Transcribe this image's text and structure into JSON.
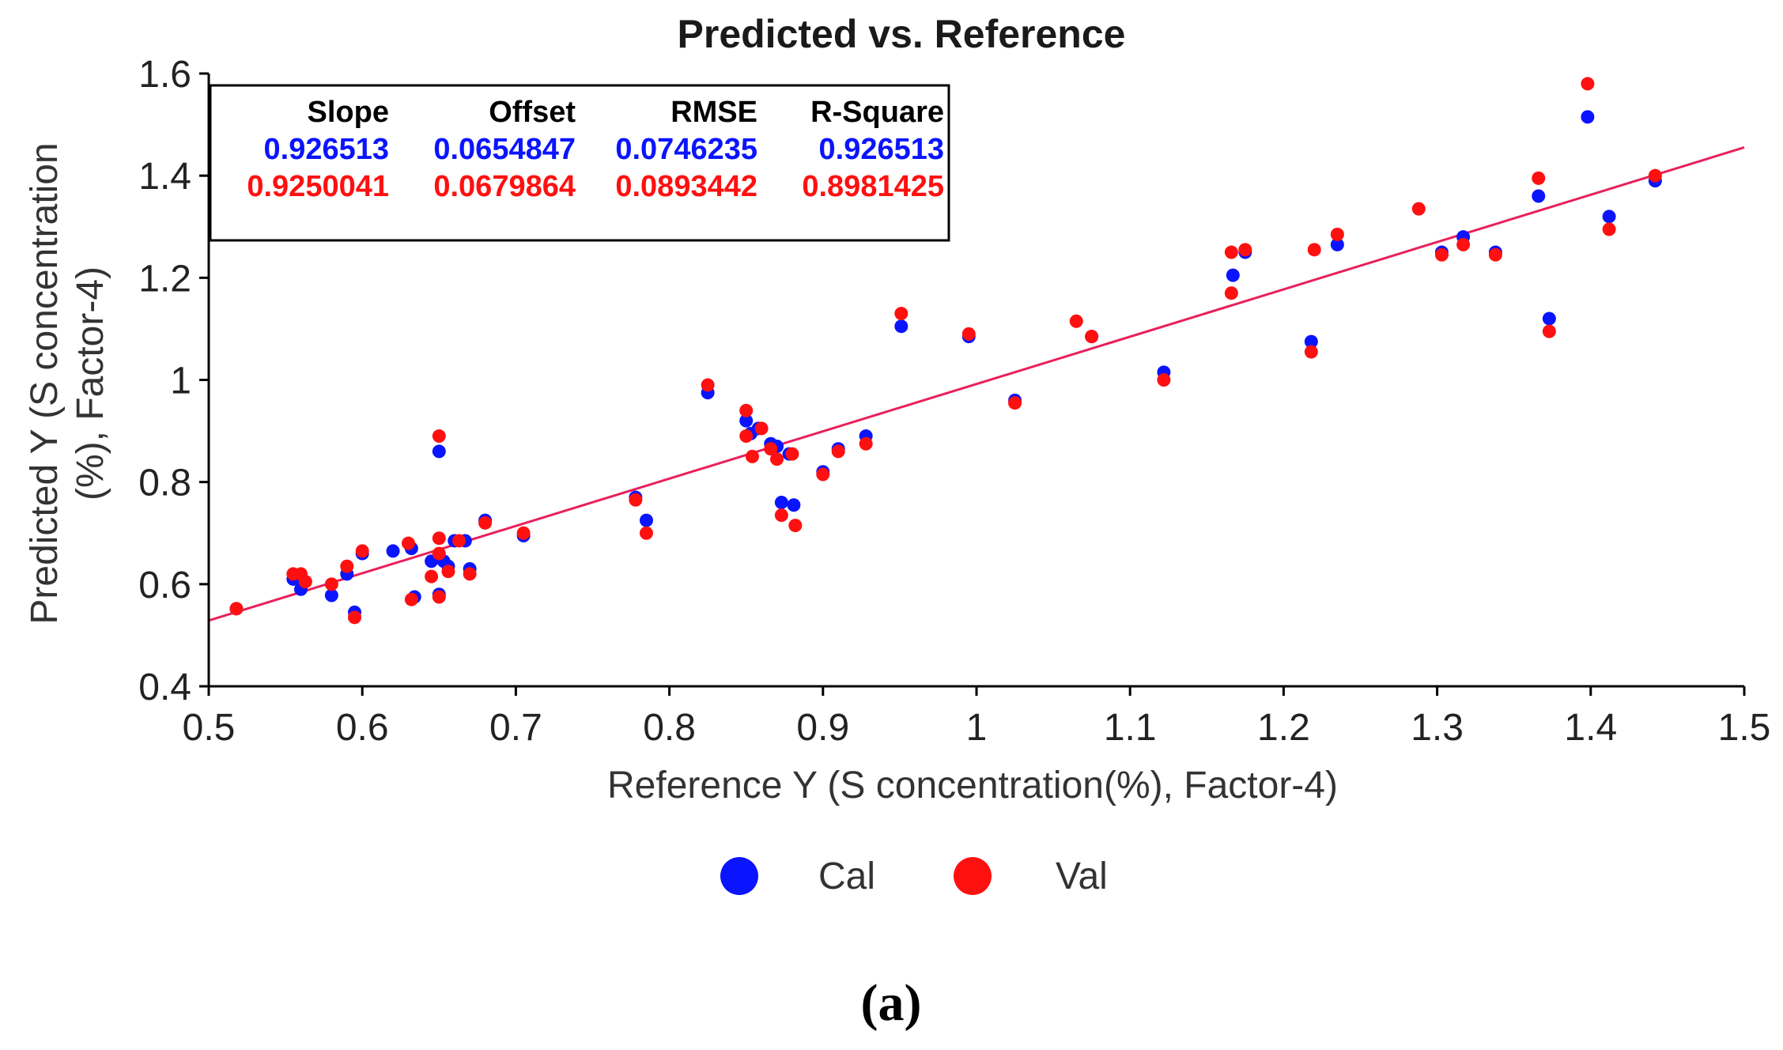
{
  "colors": {
    "cal": "#0a14ff",
    "val": "#ff1010",
    "fit_line": "#e8205a",
    "axis": "#000000"
  },
  "chart_data": {
    "type": "scatter",
    "title": "Predicted vs. Reference",
    "xlabel": "Reference Y (S concentration(%), Factor-4)",
    "ylabel_lines": [
      "Predicted Y (S concentration",
      "(%), Factor-4)"
    ],
    "xlim": [
      0.5,
      1.5
    ],
    "ylim": [
      0.4,
      1.6
    ],
    "x_ticks": [
      "0.5",
      "0.6",
      "0.7",
      "0.8",
      "0.9",
      "1",
      "1.1",
      "1.2",
      "1.3",
      "1.4",
      "1.5"
    ],
    "y_ticks": [
      "0.4",
      "0.6",
      "0.8",
      "1",
      "1.2",
      "1.4",
      "1.6"
    ],
    "fit_line": {
      "slope": 0.926513,
      "offset": 0.0654847
    },
    "stats": {
      "headers": [
        "Slope",
        "Offset",
        "RMSE",
        "R-Square"
      ],
      "rows": [
        {
          "series": "Cal",
          "values": [
            "0.926513",
            "0.0654847",
            "0.0746235",
            "0.926513"
          ]
        },
        {
          "series": "Val",
          "values": [
            "0.9250041",
            "0.0679864",
            "0.0893442",
            "0.8981425"
          ]
        }
      ]
    },
    "series": [
      {
        "name": "Cal",
        "points": [
          [
            0.518,
            0.552
          ],
          [
            0.555,
            0.61
          ],
          [
            0.56,
            0.59
          ],
          [
            0.58,
            0.578
          ],
          [
            0.59,
            0.62
          ],
          [
            0.595,
            0.545
          ],
          [
            0.6,
            0.66
          ],
          [
            0.62,
            0.665
          ],
          [
            0.632,
            0.67
          ],
          [
            0.634,
            0.575
          ],
          [
            0.645,
            0.645
          ],
          [
            0.65,
            0.86
          ],
          [
            0.65,
            0.58
          ],
          [
            0.653,
            0.645
          ],
          [
            0.656,
            0.635
          ],
          [
            0.66,
            0.685
          ],
          [
            0.667,
            0.685
          ],
          [
            0.67,
            0.63
          ],
          [
            0.68,
            0.725
          ],
          [
            0.705,
            0.695
          ],
          [
            0.778,
            0.77
          ],
          [
            0.785,
            0.725
          ],
          [
            0.825,
            0.975
          ],
          [
            0.85,
            0.92
          ],
          [
            0.853,
            0.895
          ],
          [
            0.858,
            0.905
          ],
          [
            0.866,
            0.875
          ],
          [
            0.87,
            0.87
          ],
          [
            0.873,
            0.76
          ],
          [
            0.878,
            0.855
          ],
          [
            0.881,
            0.755
          ],
          [
            0.9,
            0.82
          ],
          [
            0.91,
            0.865
          ],
          [
            0.928,
            0.89
          ],
          [
            0.951,
            1.105
          ],
          [
            0.995,
            1.085
          ],
          [
            1.025,
            0.96
          ],
          [
            1.075,
            1.085
          ],
          [
            1.122,
            1.015
          ],
          [
            1.167,
            1.205
          ],
          [
            1.175,
            1.25
          ],
          [
            1.218,
            1.075
          ],
          [
            1.235,
            1.265
          ],
          [
            1.303,
            1.25
          ],
          [
            1.317,
            1.28
          ],
          [
            1.338,
            1.25
          ],
          [
            1.366,
            1.36
          ],
          [
            1.373,
            1.12
          ],
          [
            1.398,
            1.515
          ],
          [
            1.412,
            1.32
          ],
          [
            1.442,
            1.39
          ]
        ]
      },
      {
        "name": "Val",
        "points": [
          [
            0.518,
            0.552
          ],
          [
            0.555,
            0.62
          ],
          [
            0.56,
            0.62
          ],
          [
            0.563,
            0.605
          ],
          [
            0.58,
            0.6
          ],
          [
            0.59,
            0.635
          ],
          [
            0.595,
            0.535
          ],
          [
            0.6,
            0.665
          ],
          [
            0.63,
            0.68
          ],
          [
            0.632,
            0.57
          ],
          [
            0.645,
            0.615
          ],
          [
            0.65,
            0.89
          ],
          [
            0.65,
            0.575
          ],
          [
            0.65,
            0.69
          ],
          [
            0.65,
            0.66
          ],
          [
            0.656,
            0.625
          ],
          [
            0.663,
            0.685
          ],
          [
            0.67,
            0.62
          ],
          [
            0.68,
            0.72
          ],
          [
            0.705,
            0.7
          ],
          [
            0.778,
            0.765
          ],
          [
            0.785,
            0.7
          ],
          [
            0.825,
            0.99
          ],
          [
            0.85,
            0.94
          ],
          [
            0.85,
            0.89
          ],
          [
            0.854,
            0.85
          ],
          [
            0.86,
            0.905
          ],
          [
            0.866,
            0.865
          ],
          [
            0.87,
            0.845
          ],
          [
            0.873,
            0.735
          ],
          [
            0.88,
            0.855
          ],
          [
            0.882,
            0.715
          ],
          [
            0.9,
            0.815
          ],
          [
            0.91,
            0.86
          ],
          [
            0.928,
            0.875
          ],
          [
            0.951,
            1.13
          ],
          [
            0.995,
            1.09
          ],
          [
            1.025,
            0.955
          ],
          [
            1.065,
            1.115
          ],
          [
            1.075,
            1.085
          ],
          [
            1.122,
            1.0
          ],
          [
            1.166,
            1.17
          ],
          [
            1.166,
            1.25
          ],
          [
            1.175,
            1.255
          ],
          [
            1.218,
            1.055
          ],
          [
            1.22,
            1.255
          ],
          [
            1.235,
            1.285
          ],
          [
            1.288,
            1.335
          ],
          [
            1.303,
            1.245
          ],
          [
            1.317,
            1.265
          ],
          [
            1.338,
            1.245
          ],
          [
            1.366,
            1.395
          ],
          [
            1.373,
            1.095
          ],
          [
            1.398,
            1.58
          ],
          [
            1.412,
            1.295
          ],
          [
            1.442,
            1.4
          ]
        ]
      }
    ],
    "legend": [
      {
        "name": "Cal",
        "label": "Cal"
      },
      {
        "name": "Val",
        "label": "Val"
      }
    ]
  },
  "caption": "(a)"
}
